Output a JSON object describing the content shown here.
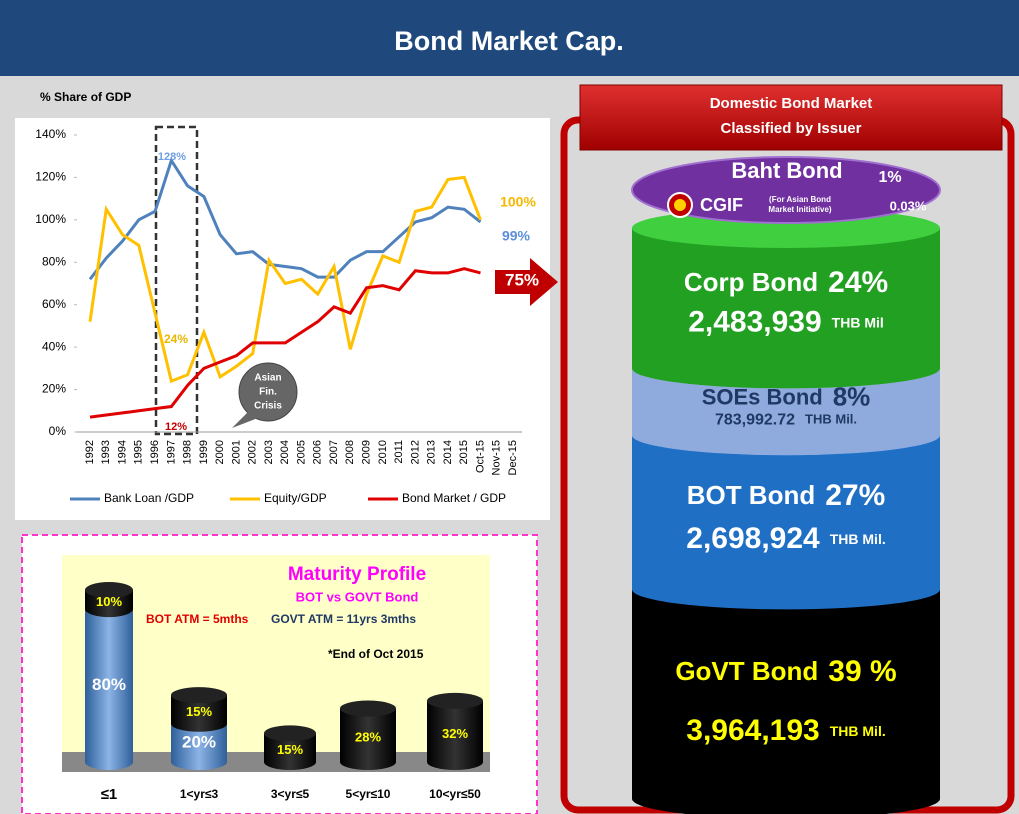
{
  "title": "Bond Market Cap.",
  "chart_data": [
    {
      "type": "line",
      "y_label": "% Share of GDP",
      "categories": [
        "1992",
        "1993",
        "1994",
        "1995",
        "1996",
        "1997",
        "1998",
        "1999",
        "2000",
        "2001",
        "2002",
        "2003",
        "2004",
        "2005",
        "2006",
        "2007",
        "2008",
        "2009",
        "2010",
        "2011",
        "2012",
        "2013",
        "2014",
        "2015",
        "Oct-15",
        "Nov-15",
        "Dec-15"
      ],
      "series": [
        {
          "name": "Bank Loan /GDP",
          "color": "#4f81bd",
          "values": [
            72,
            82,
            90,
            100,
            104,
            128,
            116,
            111,
            93,
            84,
            85,
            79,
            78,
            77,
            73,
            73,
            81,
            85,
            85,
            92,
            99,
            101,
            106,
            105,
            99,
            null,
            null
          ]
        },
        {
          "name": "Equity/GDP",
          "color": "#ffc000",
          "values": [
            52,
            105,
            93,
            88,
            56,
            24,
            27,
            47,
            26,
            31,
            37,
            81,
            70,
            72,
            65,
            78,
            39,
            65,
            83,
            80,
            104,
            106,
            119,
            120,
            100,
            null,
            null
          ]
        },
        {
          "name": "Bond Market / GDP",
          "color": "#e00000",
          "values": [
            7,
            8,
            9,
            10,
            11,
            12,
            22,
            30,
            33,
            36,
            42,
            42,
            42,
            47,
            52,
            59,
            56,
            68,
            69,
            67,
            76,
            75,
            75,
            77,
            75,
            null,
            null
          ]
        }
      ],
      "ylim": [
        0,
        140
      ],
      "yticks": [
        {
          "value": 0,
          "label": "0%"
        },
        {
          "value": 20,
          "label": "20%"
        },
        {
          "value": 40,
          "label": "40%"
        },
        {
          "value": 60,
          "label": "60%"
        },
        {
          "value": 80,
          "label": "80%"
        },
        {
          "value": 100,
          "label": "100%"
        },
        {
          "value": 120,
          "label": "120%"
        },
        {
          "value": 140,
          "label": "140%"
        }
      ],
      "grid": false,
      "legend": "bottom",
      "annotations": [
        "128%",
        "24%",
        "12%",
        "100%",
        "99%",
        "75%"
      ],
      "callout": [
        "Asian",
        "Fin.",
        "Crisis"
      ]
    },
    {
      "type": "stacked-cylinder",
      "title": "Maturity Profile",
      "subtitle": "BOT vs GOVT Bond",
      "annotations": [
        "BOT ATM = 5mths",
        "GOVT ATM = 11yrs 3mths",
        "*End of Oct 2015"
      ],
      "categories": [
        "≤1",
        "1<yr≤3",
        "3<yr≤5",
        "5<yr≤10",
        "10<yr≤50"
      ],
      "ylim": [
        0,
        90
      ],
      "series": [
        {
          "color": "#4f81bd",
          "values": [
            80,
            20,
            null,
            null,
            null
          ],
          "value_labels": [
            "80%",
            "20%",
            null,
            null,
            null
          ]
        },
        {
          "color": "#000000",
          "values": [
            10,
            15,
            15,
            28,
            32
          ],
          "value_labels": [
            "10%",
            "15%",
            "15%",
            "28%",
            "32%"
          ]
        }
      ]
    },
    {
      "type": "issuer-cylinder",
      "title": "Domestic Bond Market",
      "subtitle": "Classified by Issuer",
      "segments": [
        {
          "name": "Baht Bond",
          "value": 1,
          "value_label": "1%",
          "color": "#7030a0"
        },
        {
          "name": "CGIF",
          "value": 0.03,
          "value_label": "0.03%",
          "note": [
            "(For Asian Bond",
            "Market Initiative)"
          ],
          "color": "#7030a0"
        },
        {
          "name": "Corp Bond",
          "value": 24,
          "value_label": "24%",
          "amount": "2,483,939",
          "unit": "THB Mil",
          "color": "#22a022"
        },
        {
          "name": "SOEs Bond",
          "value": 8,
          "value_label": "8%",
          "amount": "783,992.72",
          "unit": "THB Mil.",
          "color": "#8faadc"
        },
        {
          "name": "BOT Bond",
          "value": 27,
          "value_label": "27%",
          "amount": "2,698,924",
          "unit": "THB Mil.",
          "color": "#1f6fc5"
        },
        {
          "name": "GoVT Bond",
          "value": 39,
          "value_label": "39 %",
          "amount": "3,964,193",
          "unit": "THB Mil.",
          "color": "#000000"
        }
      ]
    }
  ]
}
